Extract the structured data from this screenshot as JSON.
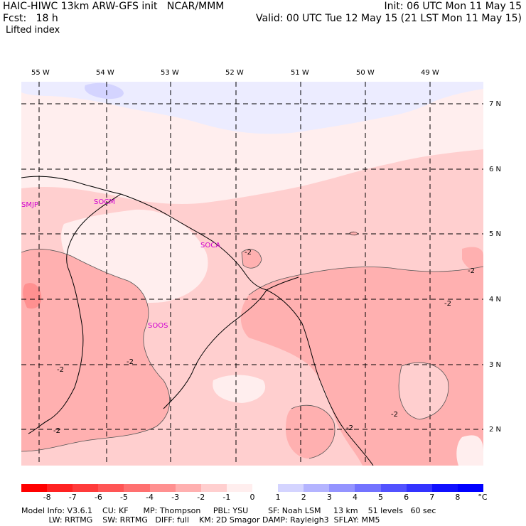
{
  "header": {
    "line1_left": "HAIC-HIWC 13km ARW-GFS init   NCAR/MMM",
    "line1_right": "Init: 06 UTC Mon 11 May 15",
    "line2_left": "Fcst:   18 h",
    "line2_right": "Valid: 00 UTC Tue 12 May 15 (21 LST Mon 11 May 15)",
    "field_label": "Lifted index"
  },
  "map": {
    "longitude_labels": [
      {
        "lon": -55,
        "text": "55 W"
      },
      {
        "lon": -54,
        "text": "54 W"
      },
      {
        "lon": -53,
        "text": "53 W"
      },
      {
        "lon": -52,
        "text": "52 W"
      },
      {
        "lon": -51,
        "text": "51 W"
      },
      {
        "lon": -50,
        "text": "50 W"
      },
      {
        "lon": -49,
        "text": "49 W"
      }
    ],
    "latitude_labels": [
      {
        "lat": 7,
        "text": "7 N"
      },
      {
        "lat": 6,
        "text": "6 N"
      },
      {
        "lat": 5,
        "text": "5 N"
      },
      {
        "lat": 4,
        "text": "4 N"
      },
      {
        "lat": 3,
        "text": "3 N"
      },
      {
        "lat": 2,
        "text": "2 N"
      }
    ],
    "stations": [
      {
        "id": "smjp",
        "text": "SMJP"
      },
      {
        "id": "socm",
        "text": "SOCM"
      },
      {
        "id": "soca",
        "text": "SOCA"
      },
      {
        "id": "soos",
        "text": "SOOS"
      }
    ],
    "contour_label_text": "-2",
    "colors": {
      "li_pos_1": "#ececff",
      "li_zero": "#ffffff",
      "li_neg_1": "#ffeeee",
      "li_neg_2": "#ffcfcf",
      "li_neg_3": "#ffb0b0",
      "li_neg_4": "#ff9090"
    }
  },
  "colorbar": {
    "labels": [
      "-8",
      "-7",
      "-6",
      "-5",
      "-4",
      "-3",
      "-2",
      "-1",
      "0",
      "1",
      "2",
      "3",
      "4",
      "5",
      "6",
      "7",
      "8"
    ],
    "unit": "°C",
    "colors": [
      "#ff0000",
      "#ff2222",
      "#ff3b3b",
      "#ff5555",
      "#ff7070",
      "#ff9090",
      "#ffb0b0",
      "#ffcfcf",
      "#ffeeee",
      "#ffffff",
      "#d4d4ff",
      "#b4b4ff",
      "#9494ff",
      "#7373ff",
      "#5252ff",
      "#3333ff",
      "#1010ff",
      "#0000ff"
    ]
  },
  "model_info": {
    "line1": "Model Info: V3.6.1    CU: KF      MP: Thompson     PBL: YSU        SF: Noah LSM     13 km    51 levels   60 sec",
    "line2": "           LW: RRTMG    SW: RRTMG   DIFF: full    KM: 2D Smagor DAMP: Rayleigh3  SFLAY: MM5"
  }
}
